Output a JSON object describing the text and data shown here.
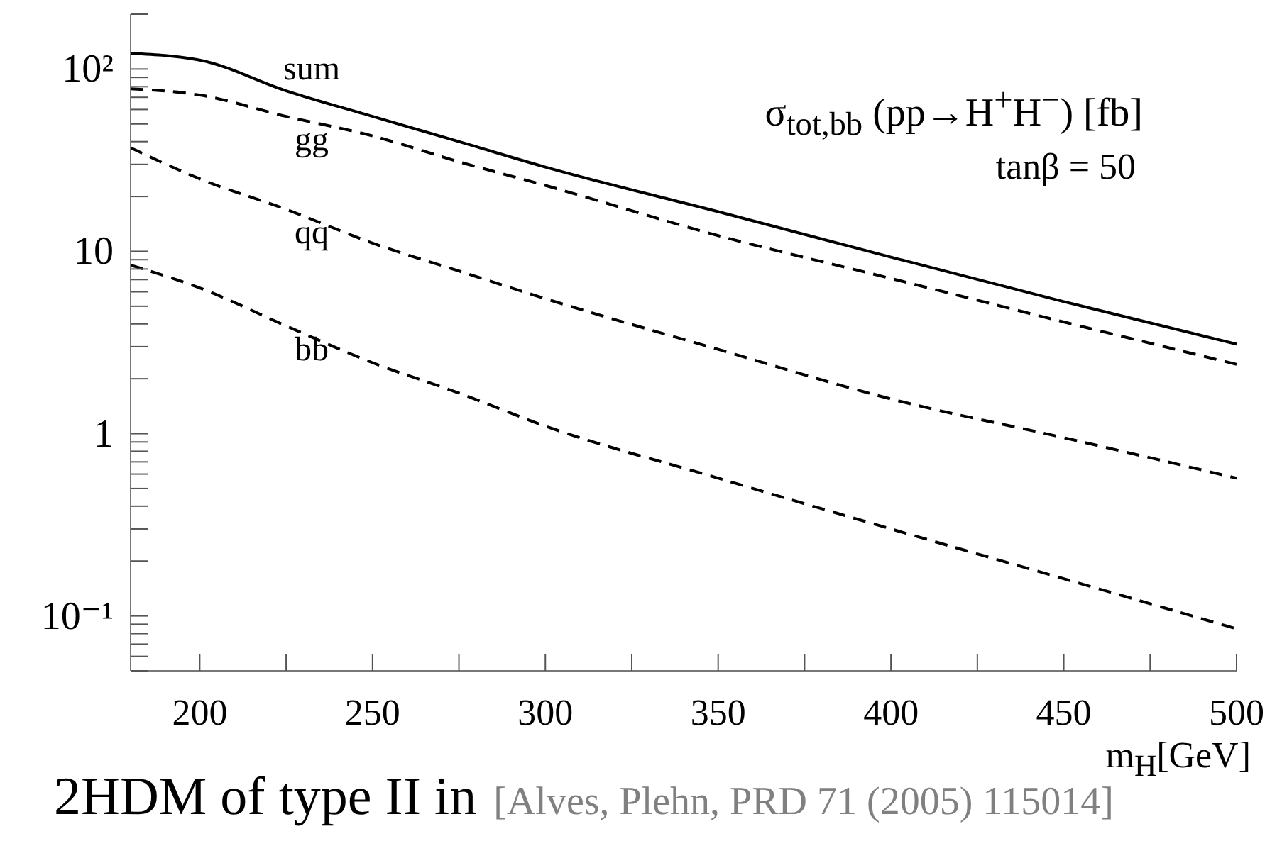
{
  "chart_data": {
    "type": "line",
    "title": "2HDM of type II in",
    "ylabel": "σ$_{tot,bb}$ (pp→H$^{+}$H$^{−}$) [fb]",
    "xlabel": "m$_{H}$[GeV]",
    "annotations": [
      "tanβ = 50",
      "[Alves, Plehn, PRD 71 (2005) 115014]"
    ],
    "x": [
      180,
      200,
      225,
      250,
      275,
      300,
      350,
      400,
      450,
      500
    ],
    "series": [
      {
        "name": "sum",
        "color": "#000000",
        "line_style": "solid",
        "values": [
          122,
          112,
          76,
          55,
          40,
          29,
          16.5,
          9.3,
          5.3,
          3.1
        ]
      },
      {
        "name": "gg",
        "color": "#000000",
        "values": [
          78,
          72,
          55,
          43,
          31,
          23,
          12.2,
          7.1,
          4.1,
          2.4
        ]
      },
      {
        "name": "qq",
        "color": "#000000",
        "values": [
          37,
          25,
          17,
          11.1,
          7.8,
          5.5,
          2.9,
          1.55,
          0.95,
          0.57
        ]
      },
      {
        "name": "bb",
        "color": "#000000",
        "values": [
          8.4,
          6.3,
          3.9,
          2.45,
          1.67,
          1.1,
          0.57,
          0.3,
          0.16,
          0.085
        ]
      }
    ],
    "line_style": "dashed",
    "log": "y",
    "xlim": [
      180,
      500
    ],
    "xticks": [
      200,
      {
        "value": 225,
        "label": null
      },
      250,
      {
        "value": 275,
        "label": null
      },
      300,
      {
        "value": 325,
        "label": null
      },
      350,
      {
        "value": 375,
        "label": null
      },
      400,
      {
        "value": 425,
        "label": null
      },
      450,
      {
        "value": 475,
        "label": null
      },
      500
    ],
    "ylim": [
      0.05,
      200
    ],
    "yticks": [
      {
        "value": 0.05,
        "label": null
      },
      {
        "value": 0.06,
        "label": null
      },
      {
        "value": 0.07,
        "label": null
      },
      {
        "value": 0.08,
        "label": null
      },
      {
        "value": 0.09,
        "label": null
      },
      {
        "value": 0.1,
        "label": "10⁻¹"
      },
      {
        "value": 0.2,
        "label": null
      },
      {
        "value": 0.3,
        "label": null
      },
      {
        "value": 0.4,
        "label": null
      },
      {
        "value": 0.5,
        "label": null
      },
      {
        "value": 0.6,
        "label": null
      },
      {
        "value": 0.7,
        "label": null
      },
      {
        "value": 0.8,
        "label": null
      },
      {
        "value": 0.9,
        "label": null
      },
      1,
      {
        "value": 2,
        "label": null
      },
      {
        "value": 3,
        "label": null
      },
      {
        "value": 4,
        "label": null
      },
      {
        "value": 5,
        "label": null
      },
      {
        "value": 6,
        "label": null
      },
      {
        "value": 7,
        "label": null
      },
      {
        "value": 8,
        "label": null
      },
      {
        "value": 9,
        "label": null
      },
      10,
      {
        "value": 20,
        "label": null
      },
      {
        "value": 30,
        "label": null
      },
      {
        "value": 40,
        "label": null
      },
      {
        "value": 50,
        "label": null
      },
      {
        "value": 60,
        "label": null
      },
      {
        "value": 70,
        "label": null
      },
      {
        "value": 80,
        "label": null
      },
      {
        "value": 90,
        "label": null
      },
      {
        "value": 100,
        "label": "10²"
      },
      {
        "value": 200,
        "label": null
      }
    ]
  }
}
